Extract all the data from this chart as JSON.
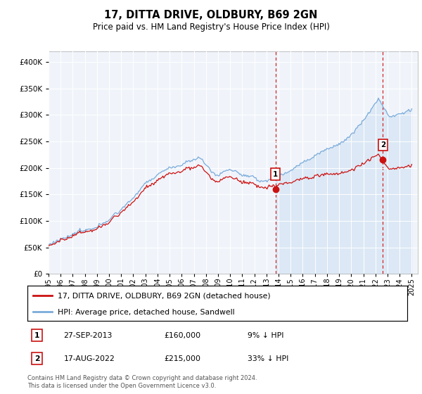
{
  "title": "17, DITTA DRIVE, OLDBURY, B69 2GN",
  "subtitle": "Price paid vs. HM Land Registry's House Price Index (HPI)",
  "ylim": [
    0,
    420000
  ],
  "yticks": [
    0,
    50000,
    100000,
    150000,
    200000,
    250000,
    300000,
    350000,
    400000
  ],
  "plot_bg": "#f0f4fa",
  "hpi_color": "#7aabdb",
  "hpi_fill_color": "#dce8f5",
  "price_color": "#cc1111",
  "dashed_color": "#cc1111",
  "sale1_price": 160000,
  "sale1_label": "1",
  "sale1_x": 2013.74,
  "sale2_price": 215000,
  "sale2_label": "2",
  "sale2_x": 2022.62,
  "legend_label1": "17, DITTA DRIVE, OLDBURY, B69 2GN (detached house)",
  "legend_label2": "HPI: Average price, detached house, Sandwell",
  "note1_label": "1",
  "note1_date": "27-SEP-2013",
  "note1_price": "£160,000",
  "note1_hpi": "9% ↓ HPI",
  "note2_label": "2",
  "note2_date": "17-AUG-2022",
  "note2_price": "£215,000",
  "note2_hpi": "33% ↓ HPI",
  "footer": "Contains HM Land Registry data © Crown copyright and database right 2024.\nThis data is licensed under the Open Government Licence v3.0.",
  "xmin": 1995,
  "xmax": 2025.5,
  "xtick_years": [
    1995,
    1996,
    1997,
    1998,
    1999,
    2000,
    2001,
    2002,
    2003,
    2004,
    2005,
    2006,
    2007,
    2008,
    2009,
    2010,
    2011,
    2012,
    2013,
    2014,
    2015,
    2016,
    2017,
    2018,
    2019,
    2020,
    2021,
    2022,
    2023,
    2024,
    2025
  ]
}
